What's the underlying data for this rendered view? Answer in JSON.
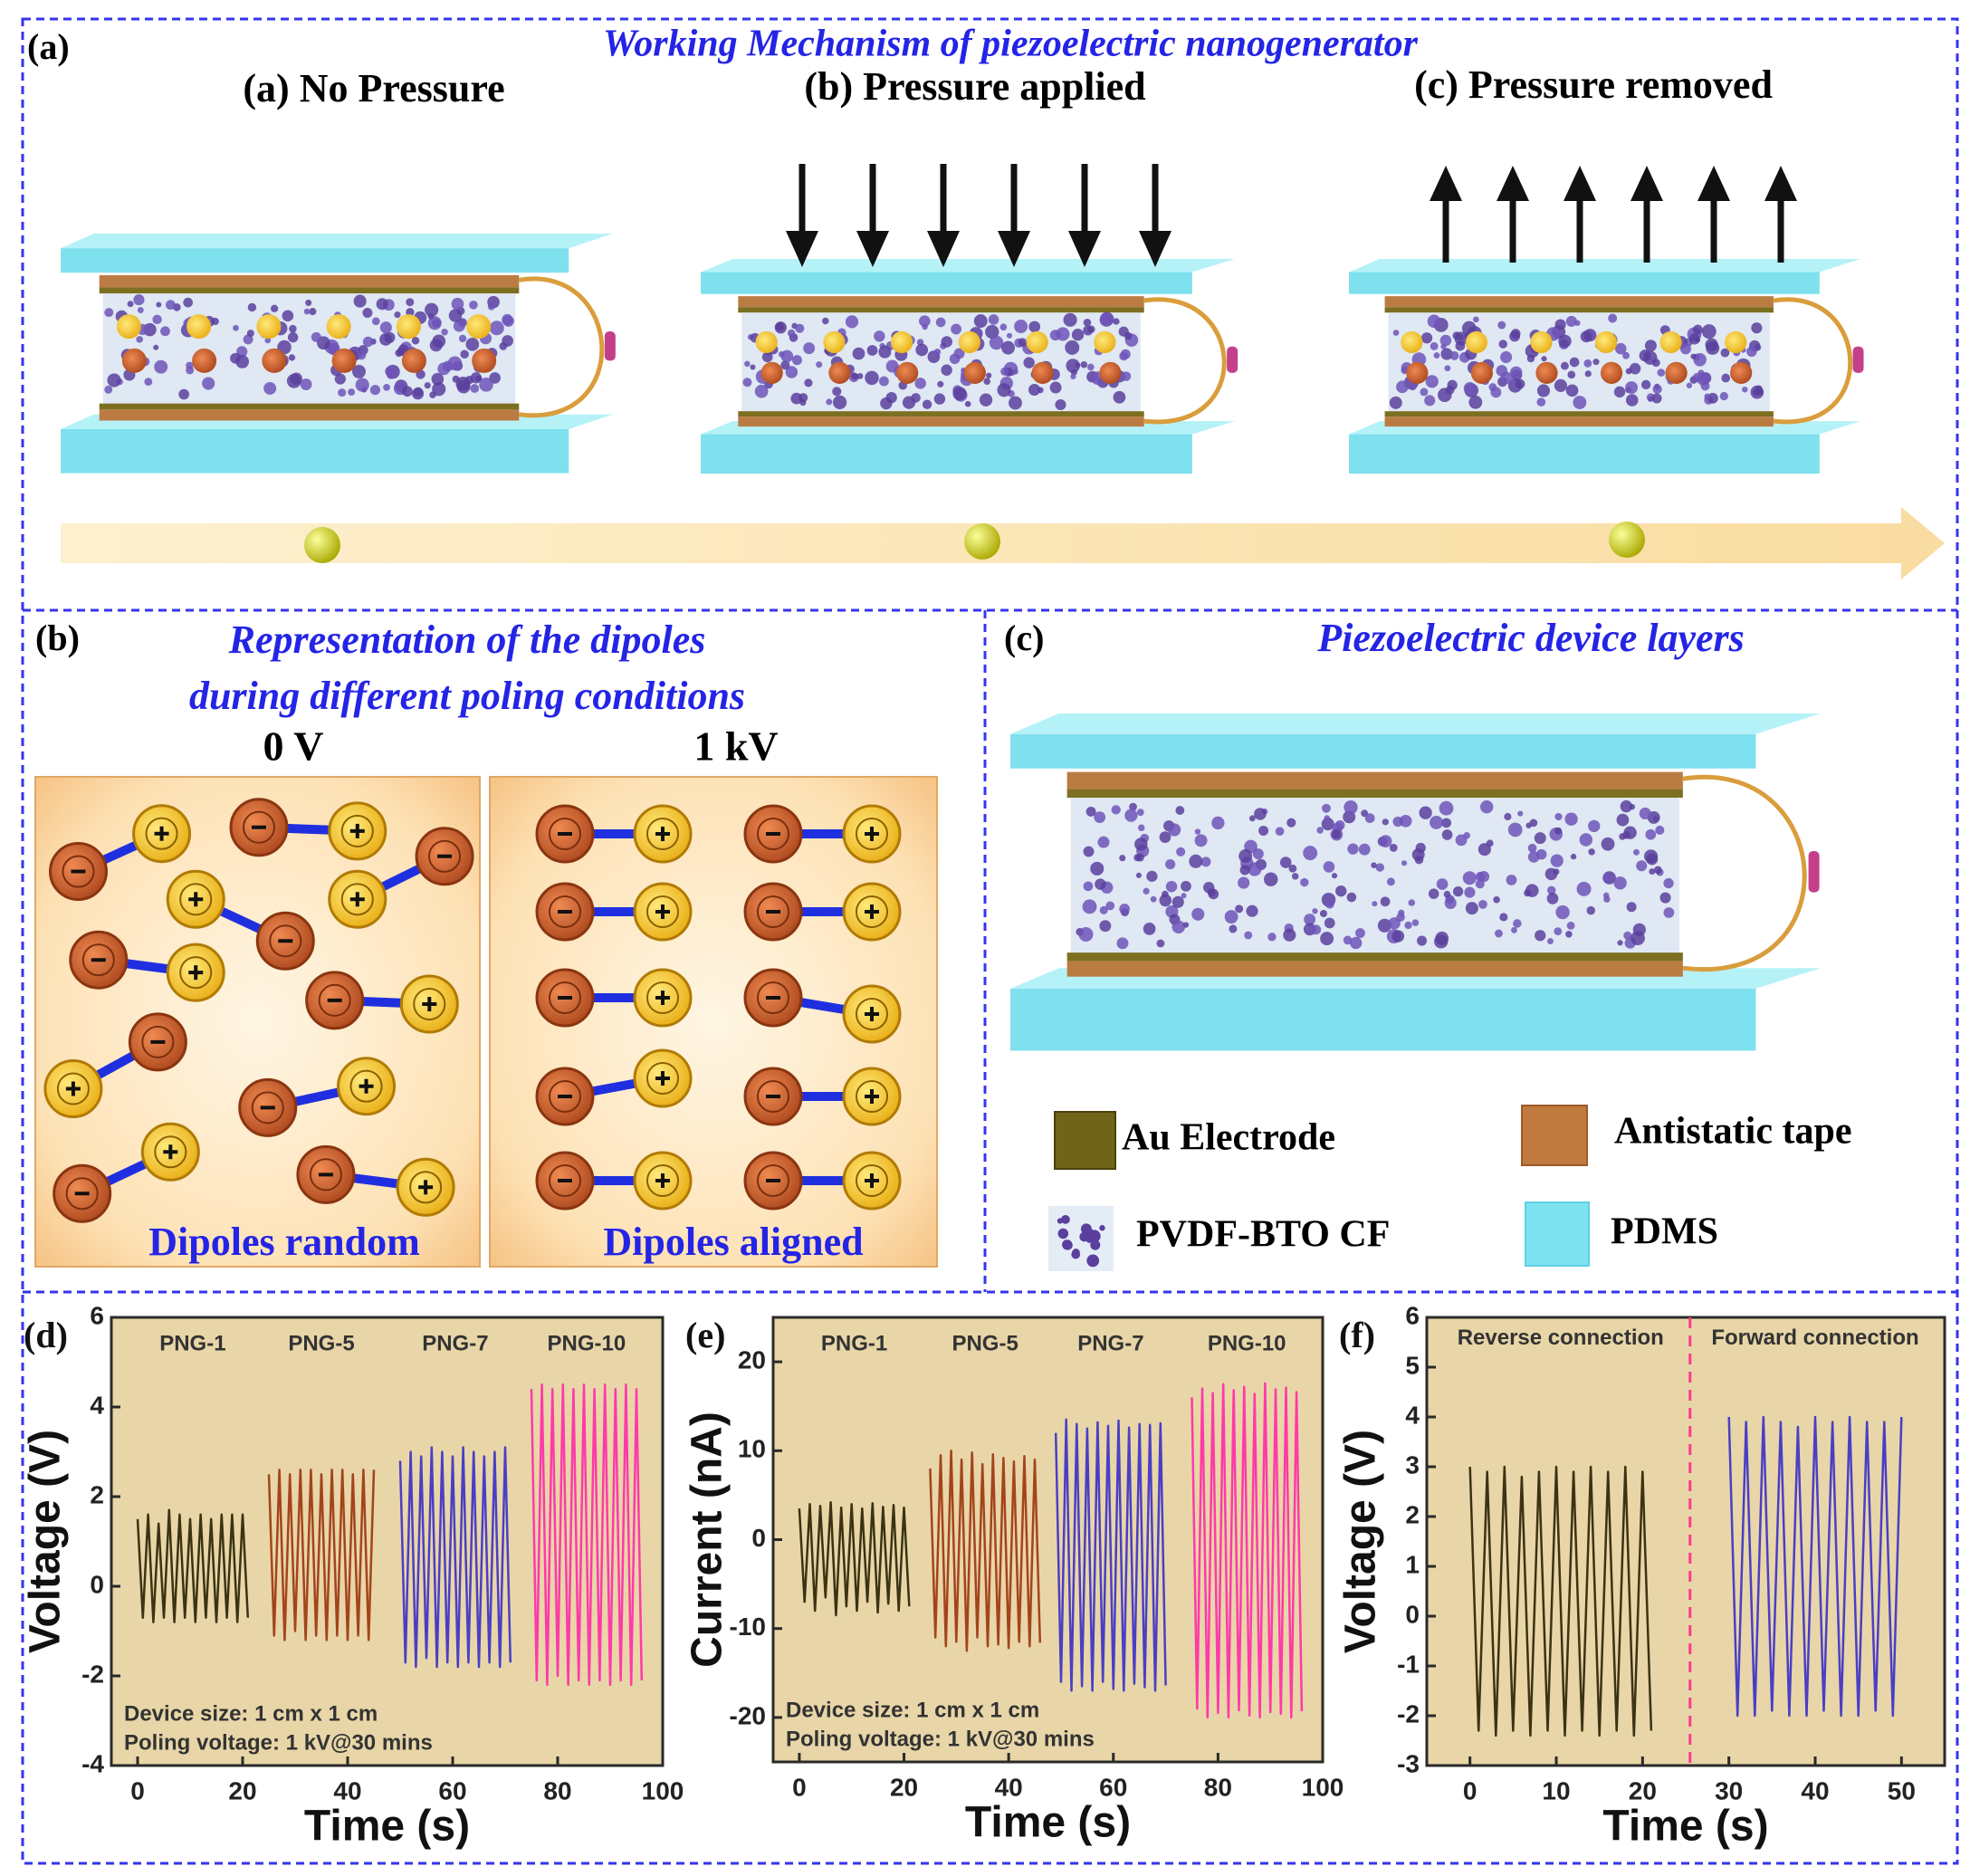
{
  "panel_a": {
    "label": "(a)",
    "title": "Working Mechanism of piezoelectric nanogenerator",
    "stages": [
      "(a) No Pressure",
      "(b) Pressure applied",
      "(c) Pressure removed"
    ]
  },
  "panel_b": {
    "label": "(b)",
    "title_lines": [
      "Representation of the dipoles",
      "during different poling conditions"
    ],
    "conditions": [
      {
        "voltage": "0 V",
        "caption": "Dipoles random"
      },
      {
        "voltage": "1 kV",
        "caption": "Dipoles aligned"
      }
    ]
  },
  "panel_c": {
    "label": "(c)",
    "title": "Piezoelectric device layers",
    "legend": [
      "Au Electrode",
      "Antistatic tape",
      "PVDF-BTO CF",
      "PDMS"
    ]
  },
  "chart_data": [
    {
      "type": "line",
      "panel_label": "(d)",
      "xlabel": "Time (s)",
      "ylabel": "Voltage (V)",
      "xlim": [
        -5,
        100
      ],
      "ylim": [
        -4,
        6
      ],
      "xticks": [
        0,
        20,
        40,
        60,
        80,
        100
      ],
      "yticks": [
        -4,
        -2,
        0,
        2,
        4,
        6
      ],
      "annotations": [
        "Device size: 1 cm x 1 cm",
        "Poling voltage: 1 kV@30 mins"
      ],
      "series": [
        {
          "name": "PNG-1",
          "color": "#3b3312",
          "x": [
            0,
            1,
            2,
            3,
            4,
            5,
            6,
            7,
            8,
            9,
            10,
            11,
            12,
            13,
            14,
            15,
            16,
            17,
            18,
            19,
            20,
            21
          ],
          "values": [
            1.5,
            -0.7,
            1.6,
            -0.8,
            1.4,
            -0.7,
            1.7,
            -0.8,
            1.6,
            -0.7,
            1.5,
            -0.8,
            1.6,
            -0.7,
            1.5,
            -0.8,
            1.6,
            -0.7,
            1.6,
            -0.8,
            1.6,
            -0.7
          ]
        },
        {
          "name": "PNG-5",
          "color": "#a4441d",
          "x": [
            25,
            26,
            27,
            28,
            29,
            30,
            31,
            32,
            33,
            34,
            35,
            36,
            37,
            38,
            39,
            40,
            41,
            42,
            43,
            44,
            45
          ],
          "values": [
            2.5,
            -1.1,
            2.6,
            -1.2,
            2.5,
            -1.0,
            2.6,
            -1.2,
            2.6,
            -1.1,
            2.5,
            -1.2,
            2.6,
            -1.1,
            2.6,
            -1.2,
            2.5,
            -1.1,
            2.6,
            -1.2,
            2.6
          ]
        },
        {
          "name": "PNG-7",
          "color": "#4a3fc4",
          "x": [
            50,
            51,
            52,
            53,
            54,
            55,
            56,
            57,
            58,
            59,
            60,
            61,
            62,
            63,
            64,
            65,
            66,
            67,
            68,
            69,
            70,
            71
          ],
          "values": [
            2.8,
            -1.7,
            3.0,
            -1.8,
            2.9,
            -1.6,
            3.1,
            -1.8,
            3.0,
            -1.7,
            2.9,
            -1.8,
            3.1,
            -1.7,
            3.0,
            -1.8,
            2.9,
            -1.7,
            3.0,
            -1.8,
            3.1,
            -1.7
          ]
        },
        {
          "name": "PNG-10",
          "color": "#ff3aa8",
          "x": [
            75,
            76,
            77,
            78,
            79,
            80,
            81,
            82,
            83,
            84,
            85,
            86,
            87,
            88,
            89,
            90,
            91,
            92,
            93,
            94,
            95,
            96
          ],
          "values": [
            4.4,
            -2.1,
            4.5,
            -2.2,
            4.4,
            -2.0,
            4.5,
            -2.2,
            4.4,
            -2.1,
            4.5,
            -2.2,
            4.4,
            -2.1,
            4.5,
            -2.2,
            4.4,
            -2.1,
            4.5,
            -2.2,
            4.4,
            -2.1
          ]
        }
      ]
    },
    {
      "type": "line",
      "panel_label": "(e)",
      "xlabel": "Time (s)",
      "ylabel": "Current (nA)",
      "xlim": [
        -5,
        100
      ],
      "ylim": [
        -25,
        25
      ],
      "xticks": [
        0,
        20,
        40,
        60,
        80,
        100
      ],
      "yticks": [
        -20,
        -10,
        0,
        10,
        20
      ],
      "annotations": [
        "Device size: 1 cm x 1 cm",
        "Poling voltage: 1 kV@30 mins"
      ],
      "series": [
        {
          "name": "PNG-1",
          "color": "#3b3312",
          "x": [
            0,
            1,
            2,
            3,
            4,
            5,
            6,
            7,
            8,
            9,
            10,
            11,
            12,
            13,
            14,
            15,
            16,
            17,
            18,
            19,
            20,
            21
          ],
          "values": [
            3.5,
            -7,
            4,
            -8,
            3.8,
            -6.5,
            4.2,
            -8.5,
            3.6,
            -7.5,
            4,
            -8,
            3.5,
            -7,
            4.1,
            -8.2,
            3.7,
            -7.2,
            3.9,
            -8,
            3.6,
            -7.5
          ]
        },
        {
          "name": "PNG-5",
          "color": "#a4441d",
          "x": [
            25,
            26,
            27,
            28,
            29,
            30,
            31,
            32,
            33,
            34,
            35,
            36,
            37,
            38,
            39,
            40,
            41,
            42,
            43,
            44,
            45,
            46
          ],
          "values": [
            8,
            -11,
            9.5,
            -12,
            10,
            -11.5,
            9,
            -12.5,
            9.8,
            -11,
            8.5,
            -12,
            9.6,
            -11.8,
            9.2,
            -12.2,
            8.8,
            -11.5,
            9.4,
            -12,
            9,
            -11.6
          ]
        },
        {
          "name": "PNG-7",
          "color": "#4a3fc4",
          "x": [
            49,
            50,
            51,
            52,
            53,
            54,
            55,
            56,
            57,
            58,
            59,
            60,
            61,
            62,
            63,
            64,
            65,
            66,
            67,
            68,
            69,
            70
          ],
          "values": [
            12,
            -16,
            13.5,
            -17,
            13,
            -16.5,
            12.5,
            -17,
            13.2,
            -16,
            12.8,
            -16.8,
            13.4,
            -17,
            12.6,
            -16.2,
            13,
            -16.6,
            12.9,
            -17,
            13.1,
            -16.4
          ]
        },
        {
          "name": "PNG-10",
          "color": "#ff3aa8",
          "x": [
            75,
            76,
            77,
            78,
            79,
            80,
            81,
            82,
            83,
            84,
            85,
            86,
            87,
            88,
            89,
            90,
            91,
            92,
            93,
            94,
            95,
            96
          ],
          "values": [
            16,
            -19,
            17,
            -20,
            16.5,
            -19.5,
            17.5,
            -20,
            16.8,
            -19.2,
            17.2,
            -19.8,
            16.4,
            -20,
            17.6,
            -19.4,
            16.9,
            -19.6,
            17.1,
            -20,
            16.6,
            -19.3
          ]
        }
      ]
    },
    {
      "type": "line",
      "panel_label": "(f)",
      "xlabel": "Time (s)",
      "ylabel": "Voltage (V)",
      "xlim": [
        -5,
        55
      ],
      "ylim": [
        -3,
        6
      ],
      "xticks": [
        0,
        10,
        20,
        30,
        40,
        50
      ],
      "yticks": [
        -3,
        -2,
        -1,
        0,
        1,
        2,
        3,
        4,
        5,
        6
      ],
      "divider": 25.5,
      "divider_color": "#ff3a8c",
      "series": [
        {
          "name": "Reverse connection",
          "color": "#3b3312",
          "x": [
            0,
            1,
            2,
            3,
            4,
            5,
            6,
            7,
            8,
            9,
            10,
            11,
            12,
            13,
            14,
            15,
            16,
            17,
            18,
            19,
            20,
            21
          ],
          "values": [
            3,
            -2.3,
            2.9,
            -2.4,
            3,
            -2.3,
            2.8,
            -2.4,
            2.9,
            -2.3,
            3,
            -2.4,
            2.9,
            -2.3,
            3,
            -2.4,
            2.9,
            -2.3,
            3,
            -2.4,
            2.9,
            -2.3
          ]
        },
        {
          "name": "Forward connection",
          "color": "#4a3fc4",
          "x": [
            30,
            31,
            32,
            33,
            34,
            35,
            36,
            37,
            38,
            39,
            40,
            41,
            42,
            43,
            44,
            45,
            46,
            47,
            48,
            49,
            50
          ],
          "values": [
            4,
            -2,
            3.9,
            -2,
            4,
            -1.9,
            3.9,
            -2,
            3.8,
            -2,
            4,
            -1.9,
            3.9,
            -2,
            4,
            -2,
            3.9,
            -1.9,
            3.9,
            -2,
            4
          ]
        }
      ]
    }
  ]
}
